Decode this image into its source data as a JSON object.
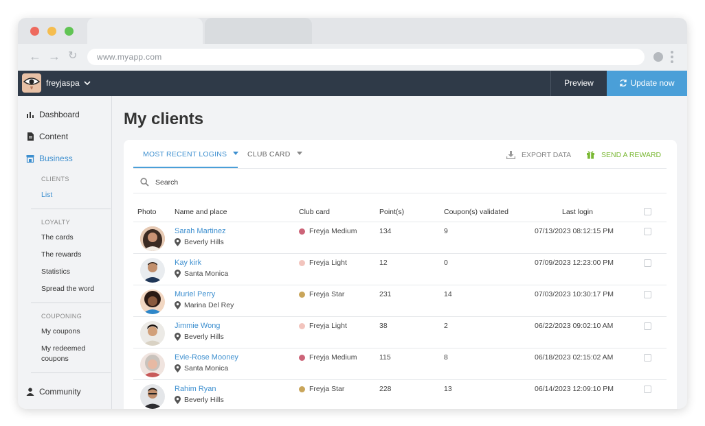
{
  "browser": {
    "url": "www.myapp.com",
    "traffic_colors": [
      "#ee6a5e",
      "#f5bd4f",
      "#61c454"
    ]
  },
  "appbar": {
    "account_name": "freyjaspa",
    "preview_label": "Preview",
    "update_label": "Update now"
  },
  "sidebar": {
    "dashboard": "Dashboard",
    "content": "Content",
    "business": "Business",
    "clients_section": "CLIENTS",
    "list": "List",
    "loyalty_section": "LOYALTY",
    "the_cards": "The cards",
    "the_rewards": "The rewards",
    "statistics": "Statistics",
    "spread": "Spread the word",
    "couponing_section": "COUPONING",
    "my_coupons": "My coupons",
    "my_redeemed_1": "My redeemed",
    "my_redeemed_2": "coupons",
    "community": "Community"
  },
  "main": {
    "title": "My clients",
    "filter_logins": "MOST RECENT LOGINS",
    "filter_club": "CLUB CARD",
    "export": "EXPORT DATA",
    "reward": "SEND A REWARD",
    "search_placeholder": "Search",
    "columns": [
      "Photo",
      "Name and place",
      "Club card",
      "Point(s)",
      "Coupon(s) validated",
      "Last login"
    ],
    "rows": [
      {
        "name": "Sarah Martinez",
        "place": "Beverly Hills",
        "card": "Freyja Medium",
        "points": "134",
        "coupons": "9",
        "login": "07/13/2023 08:12:15 PM"
      },
      {
        "name": "Kay kirk",
        "place": "Santa Monica",
        "card": "Freyja Light",
        "points": "12",
        "coupons": "0",
        "login": "07/09/2023 12:23:00 PM"
      },
      {
        "name": "Muriel Perry",
        "place": "Marina Del Rey",
        "card": "Freyja Star",
        "points": "231",
        "coupons": "14",
        "login": "07/03/2023 10:30:17 PM"
      },
      {
        "name": "Jimmie Wong",
        "place": "Beverly Hills",
        "card": "Freyja Light",
        "points": "38",
        "coupons": "2",
        "login": "06/22/2023 09:02:10 AM"
      },
      {
        "name": "Evie-Rose Mooney",
        "place": "Santa Monica",
        "card": "Freyja Medium",
        "points": "115",
        "coupons": "8",
        "login": "06/18/2023 02:15:02 AM"
      },
      {
        "name": "Rahim Ryan",
        "place": "Beverly Hills",
        "card": "Freyja Star",
        "points": "228",
        "coupons": "13",
        "login": "06/14/2023 12:09:10 PM"
      }
    ]
  },
  "colors": {
    "accent_blue": "#4a9fd8",
    "reward_green": "#7ab833",
    "card_medium": "#cc6478",
    "card_light": "#f2c4bd",
    "card_star": "#c9a55a"
  }
}
